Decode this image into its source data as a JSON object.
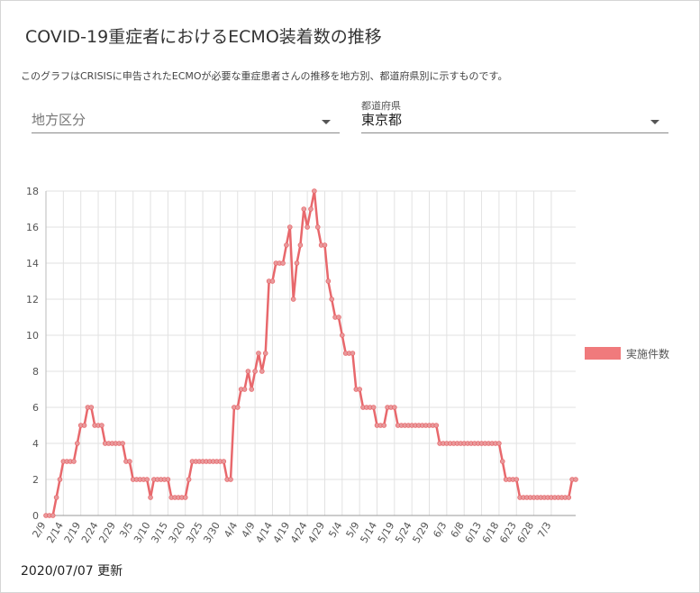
{
  "header": {
    "title": "COVID-19重症者におけるECMO装着数の推移",
    "description": "このグラフはCRISISに申告されたECMOが必要な重症患者さんの推移を地方別、都道府県別に示すものです。"
  },
  "filters": {
    "region": {
      "placeholder": "地方区分",
      "value": ""
    },
    "prefecture": {
      "label": "都道府県",
      "value": "東京都"
    }
  },
  "colors": {
    "line": "#e8686c",
    "point": "#e89a9c",
    "grid": "#e2e2e2"
  },
  "footer": {
    "updated": "2020/07/07 更新"
  },
  "chart_data": {
    "type": "line",
    "title": "",
    "xlabel": "",
    "ylabel": "",
    "ylim": [
      0,
      18
    ],
    "yticks": [
      0,
      2,
      4,
      6,
      8,
      10,
      12,
      14,
      16,
      18
    ],
    "grid": true,
    "legend_position": "right",
    "x_tick_labels": [
      "2/9",
      "2/14",
      "2/19",
      "2/24",
      "2/29",
      "3/5",
      "3/10",
      "3/15",
      "3/20",
      "3/25",
      "3/30",
      "4/4",
      "4/9",
      "4/14",
      "4/19",
      "4/24",
      "4/29",
      "5/4",
      "5/9",
      "5/14",
      "5/19",
      "5/24",
      "5/29",
      "6/3",
      "6/8",
      "6/13",
      "6/18",
      "6/23",
      "6/28",
      "7/3"
    ],
    "x_start": "2/9",
    "series": [
      {
        "name": "実施件数",
        "values": [
          0,
          0,
          0,
          1,
          2,
          3,
          3,
          3,
          3,
          4,
          5,
          5,
          6,
          6,
          5,
          5,
          5,
          4,
          4,
          4,
          4,
          4,
          4,
          3,
          3,
          2,
          2,
          2,
          2,
          2,
          1,
          2,
          2,
          2,
          2,
          2,
          1,
          1,
          1,
          1,
          1,
          2,
          3,
          3,
          3,
          3,
          3,
          3,
          3,
          3,
          3,
          3,
          2,
          2,
          6,
          6,
          7,
          7,
          8,
          7,
          8,
          9,
          8,
          9,
          13,
          13,
          14,
          14,
          14,
          15,
          16,
          12,
          14,
          15,
          17,
          16,
          17,
          18,
          16,
          15,
          15,
          13,
          12,
          11,
          11,
          10,
          9,
          9,
          9,
          7,
          7,
          6,
          6,
          6,
          6,
          5,
          5,
          5,
          6,
          6,
          6,
          5,
          5,
          5,
          5,
          5,
          5,
          5,
          5,
          5,
          5,
          5,
          5,
          4,
          4,
          4,
          4,
          4,
          4,
          4,
          4,
          4,
          4,
          4,
          4,
          4,
          4,
          4,
          4,
          4,
          4,
          3,
          2,
          2,
          2,
          2,
          1,
          1,
          1,
          1,
          1,
          1,
          1,
          1,
          1,
          1,
          1,
          1,
          1,
          1,
          1,
          2,
          2
        ]
      }
    ]
  }
}
